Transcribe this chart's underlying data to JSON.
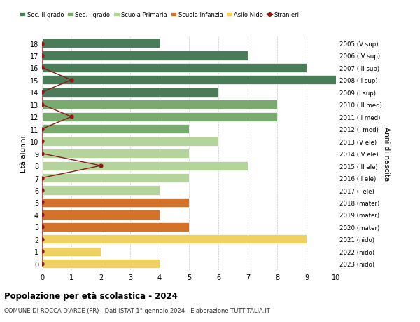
{
  "ages": [
    18,
    17,
    16,
    15,
    14,
    13,
    12,
    11,
    10,
    9,
    8,
    7,
    6,
    5,
    4,
    3,
    2,
    1,
    0
  ],
  "right_labels": [
    "2005 (V sup)",
    "2006 (IV sup)",
    "2007 (III sup)",
    "2008 (II sup)",
    "2009 (I sup)",
    "2010 (III med)",
    "2011 (II med)",
    "2012 (I med)",
    "2013 (V ele)",
    "2014 (IV ele)",
    "2015 (III ele)",
    "2016 (II ele)",
    "2017 (I ele)",
    "2018 (mater)",
    "2019 (mater)",
    "2020 (mater)",
    "2021 (nido)",
    "2022 (nido)",
    "2023 (nido)"
  ],
  "bar_values": [
    4,
    7,
    9,
    10,
    6,
    8,
    8,
    5,
    6,
    5,
    7,
    5,
    4,
    5,
    4,
    5,
    9,
    2,
    4
  ],
  "bar_colors": [
    "#4a7c59",
    "#4a7c59",
    "#4a7c59",
    "#4a7c59",
    "#4a7c59",
    "#7aab6e",
    "#7aab6e",
    "#7aab6e",
    "#b5d49b",
    "#b5d49b",
    "#b5d49b",
    "#b5d49b",
    "#b5d49b",
    "#d4722a",
    "#d4722a",
    "#d4722a",
    "#f0d060",
    "#f0d060",
    "#f0d060"
  ],
  "stranieri_values": [
    0,
    0,
    0,
    1,
    0,
    0,
    1,
    0,
    0,
    0,
    2,
    0,
    0,
    0,
    0,
    0,
    0,
    0,
    0
  ],
  "stranieri_color": "#8b1a1a",
  "title": "Popolazione per età scolastica - 2024",
  "subtitle": "COMUNE DI ROCCA D'ARCE (FR) - Dati ISTAT 1° gennaio 2024 - Elaborazione TUTTITALIA.IT",
  "ylabel": "Età alunni",
  "right_ylabel": "Anni di nascita",
  "xlim": [
    0,
    10
  ],
  "xticks": [
    0,
    1,
    2,
    3,
    4,
    5,
    6,
    7,
    8,
    9,
    10
  ],
  "legend_items": [
    {
      "label": "Sec. II grado",
      "color": "#4a7c59",
      "type": "patch"
    },
    {
      "label": "Sec. I grado",
      "color": "#7aab6e",
      "type": "patch"
    },
    {
      "label": "Scuola Primaria",
      "color": "#b5d49b",
      "type": "patch"
    },
    {
      "label": "Scuola Infanzia",
      "color": "#d4722a",
      "type": "patch"
    },
    {
      "label": "Asilo Nido",
      "color": "#f0d060",
      "type": "patch"
    },
    {
      "label": "Stranieri",
      "color": "#8b1a1a",
      "type": "line"
    }
  ],
  "bg_color": "#ffffff",
  "grid_color": "#cccccc",
  "bar_height": 0.75
}
